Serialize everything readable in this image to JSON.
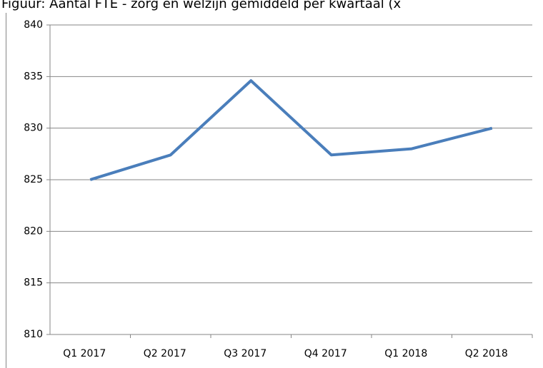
{
  "chart_data": {
    "type": "line",
    "title": "Figuur: Aantal FTE - zorg en welzijn gemiddeld per kwartaal (x",
    "categories": [
      "Q1 2017",
      "Q2 2017",
      "Q3 2017",
      "Q4 2017",
      "Q1 2018",
      "Q2 2018"
    ],
    "series": [
      {
        "name": "Aantal FTE",
        "color": "#4a7ebb",
        "values": [
          825,
          827.4,
          834.6,
          827.4,
          828.0,
          830.0
        ]
      }
    ],
    "ylim": [
      810,
      840
    ],
    "yticks": [
      810,
      815,
      820,
      825,
      830,
      835,
      840
    ],
    "grid": true
  }
}
